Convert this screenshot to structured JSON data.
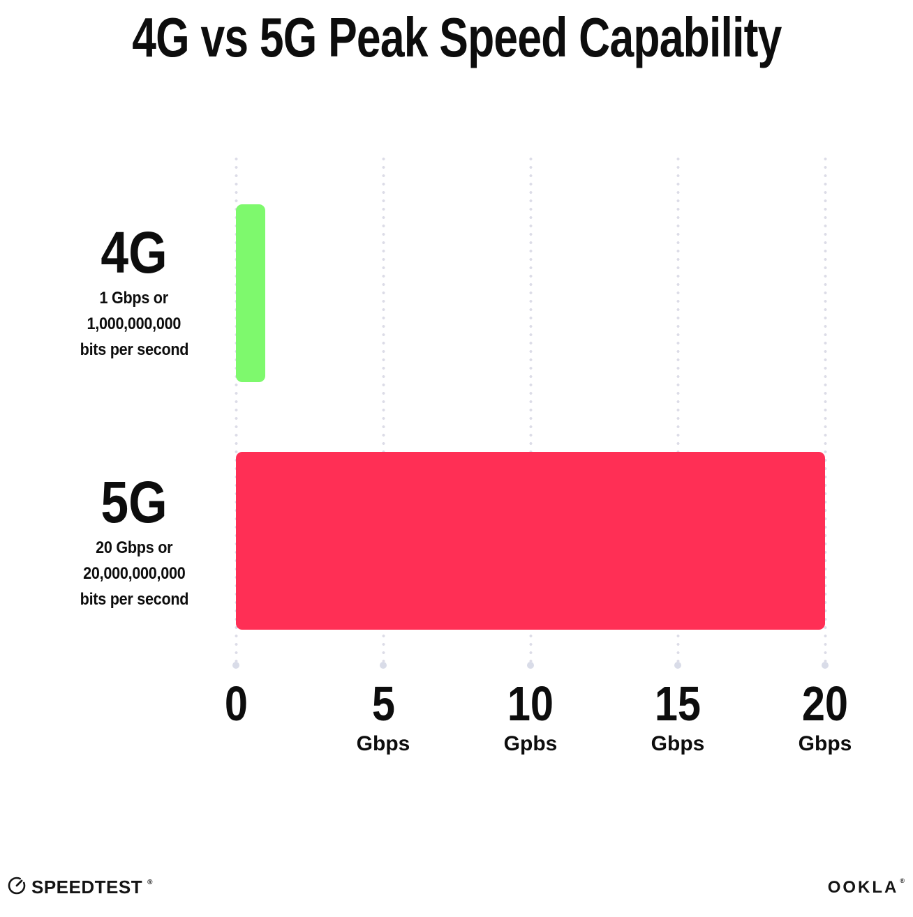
{
  "title": "4G vs 5G Peak Speed Capability",
  "chart_data": {
    "type": "bar",
    "orientation": "horizontal",
    "title": "4G vs 5G Peak Speed Capability",
    "categories": [
      "4G",
      "5G"
    ],
    "values": [
      1,
      20
    ],
    "unit": "Gbps",
    "xlim": [
      0,
      20
    ],
    "grid": "vertical dotted gridlines at 0, 5, 10, 15, 20 with round end dots",
    "legend": "none",
    "bar_colors": [
      "#7EF96D",
      "#FF2F55"
    ],
    "x_ticks": [
      {
        "value": 0,
        "label": "0",
        "unit": ""
      },
      {
        "value": 5,
        "label": "5",
        "unit": "Gbps"
      },
      {
        "value": 10,
        "label": "10",
        "unit": "Gpbs"
      },
      {
        "value": 15,
        "label": "15",
        "unit": "Gbps"
      },
      {
        "value": 20,
        "label": "20",
        "unit": "Gbps"
      }
    ],
    "series_labels": [
      {
        "name": "4G",
        "sublabel_lines": [
          "1 Gbps or",
          "1,000,000,000",
          "bits per second"
        ]
      },
      {
        "name": "5G",
        "sublabel_lines": [
          "20 Gbps or",
          "20,000,000,000",
          "bits per second"
        ]
      }
    ]
  },
  "colors": {
    "background": "#FFFFFF",
    "text": "#0D0D0D",
    "gridline": "#DCDCE7",
    "grid_end_dot": "#D9DCE8",
    "bar_4g": "#7EF96D",
    "bar_5g": "#FF2F55",
    "logo": "#141414"
  },
  "footer": {
    "left_logo": "SPEEDTEST",
    "left_logo_mark": "®",
    "right_logo": "OOKLA",
    "right_logo_mark": "®"
  }
}
